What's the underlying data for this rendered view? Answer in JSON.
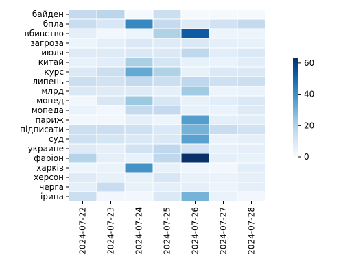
{
  "chart_data": {
    "type": "heatmap",
    "title": "",
    "xlabel": "",
    "ylabel": "",
    "x": [
      "2024-07-22",
      "2024-07-23",
      "2024-07-24",
      "2024-07-25",
      "2024-07-26",
      "2024-07-27",
      "2024-07-28"
    ],
    "y": [
      "байден",
      "бпла",
      "вбивство",
      "загроза",
      "июля",
      "китай",
      "курс",
      "липень",
      "млрд",
      "мопед",
      "мопеда",
      "париж",
      "підписати",
      "суд",
      "украине",
      "фаріон",
      "харків",
      "херсон",
      "черга",
      "ірина"
    ],
    "values": [
      [
        16,
        18,
        1,
        14,
        1,
        1,
        1
      ],
      [
        15,
        10,
        42,
        16,
        8,
        12,
        16
      ],
      [
        6,
        2,
        3,
        20,
        53,
        3,
        3
      ],
      [
        3,
        6,
        9,
        8,
        9,
        6,
        5
      ],
      [
        8,
        8,
        9,
        9,
        17,
        7,
        9
      ],
      [
        5,
        7,
        21,
        11,
        5,
        4,
        7
      ],
      [
        9,
        14,
        33,
        20,
        5,
        9,
        9
      ],
      [
        14,
        12,
        16,
        14,
        17,
        13,
        14
      ],
      [
        9,
        8,
        8,
        6,
        23,
        3,
        4
      ],
      [
        2,
        10,
        24,
        10,
        5,
        7,
        9
      ],
      [
        4,
        2,
        16,
        16,
        5,
        4,
        8
      ],
      [
        2,
        2,
        6,
        3,
        36,
        6,
        7
      ],
      [
        14,
        14,
        13,
        9,
        30,
        15,
        12
      ],
      [
        13,
        11,
        9,
        9,
        35,
        4,
        6
      ],
      [
        8,
        6,
        12,
        17,
        12,
        5,
        6
      ],
      [
        19,
        6,
        5,
        17,
        63,
        6,
        5
      ],
      [
        3,
        4,
        39,
        5,
        3,
        2,
        7
      ],
      [
        8,
        5,
        5,
        10,
        5,
        4,
        6
      ],
      [
        6,
        15,
        5,
        6,
        6,
        3,
        6
      ],
      [
        14,
        2,
        2,
        9,
        30,
        4,
        2
      ]
    ],
    "colorbar": {
      "min": 0,
      "max": 63,
      "ticks": [
        0,
        20,
        40,
        60
      ],
      "colormap": "Blues"
    },
    "legend": "right",
    "grid": false
  }
}
